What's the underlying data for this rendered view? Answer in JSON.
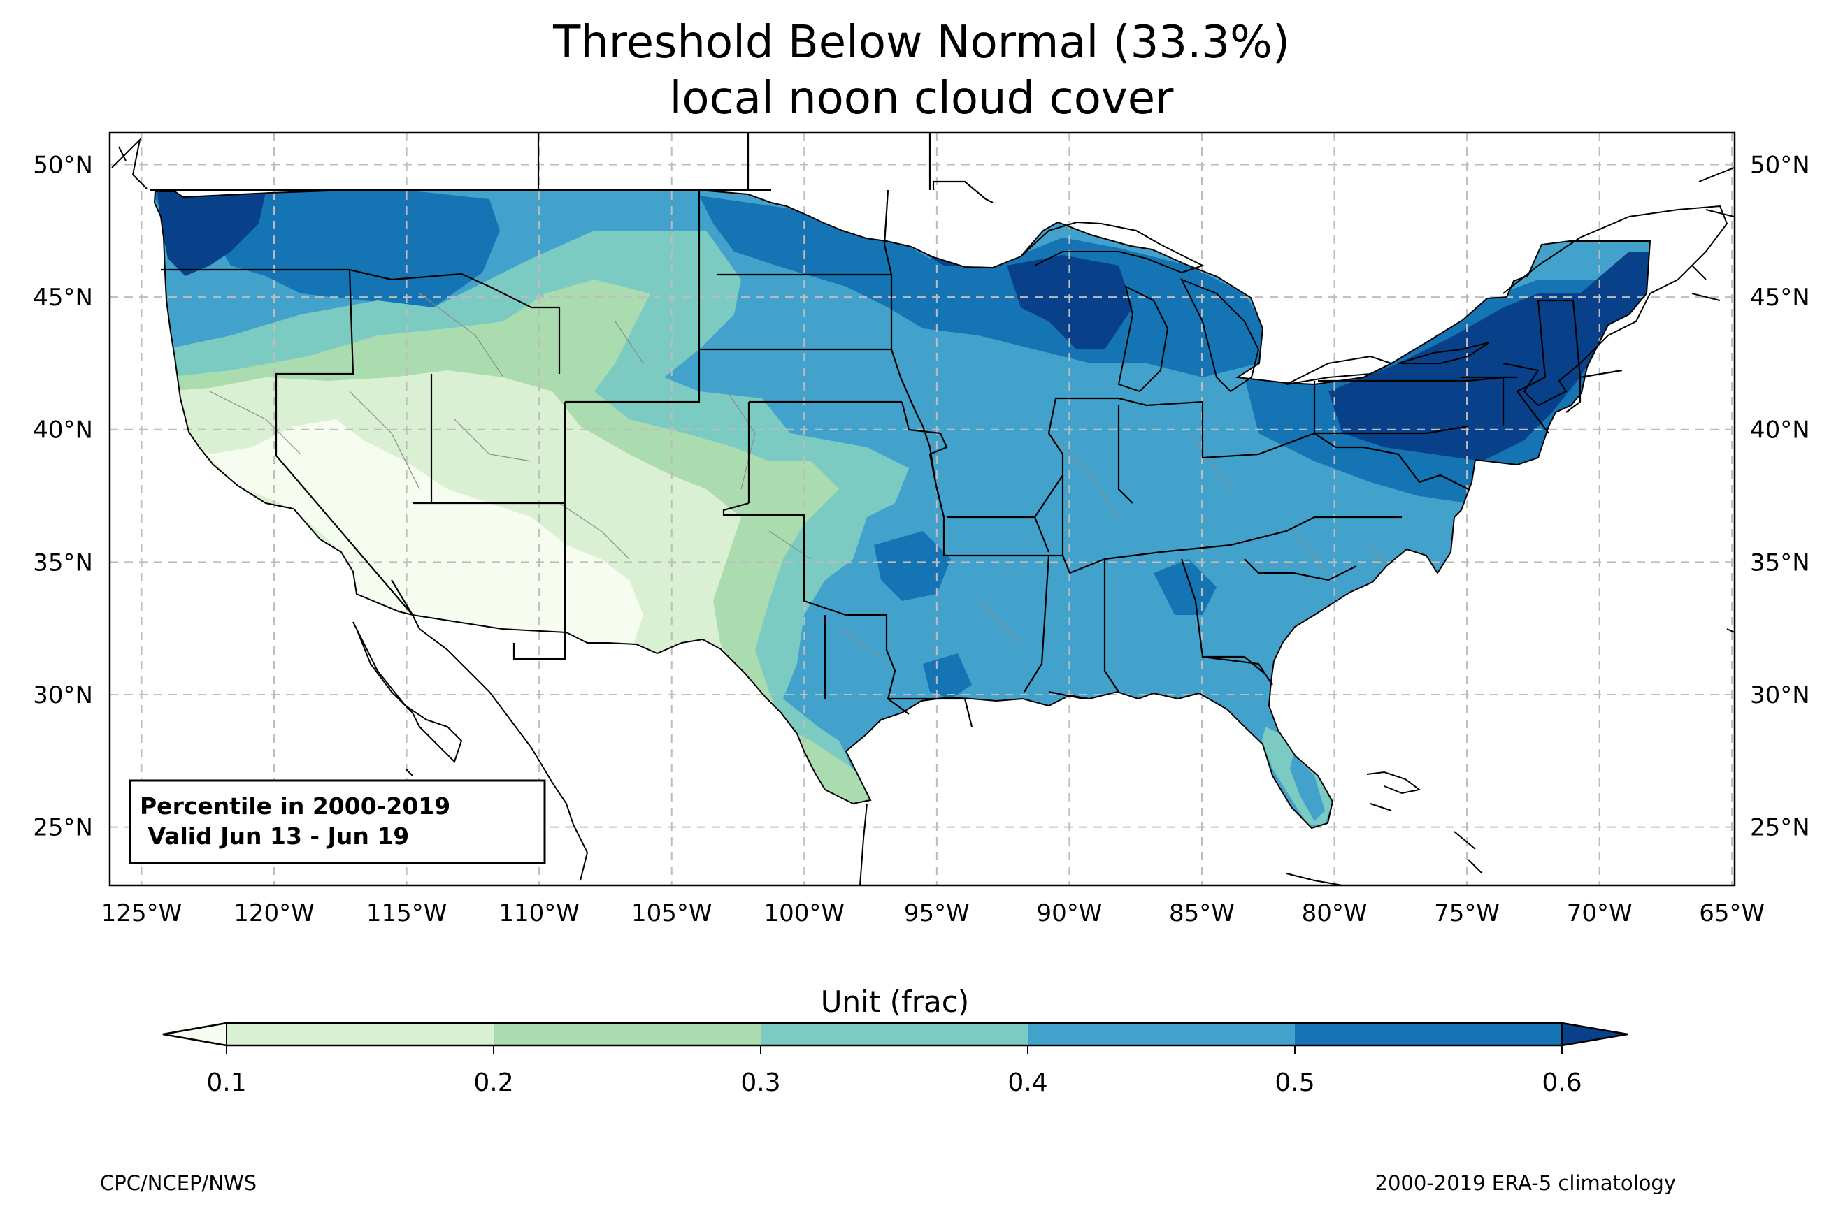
{
  "title": {
    "line1": "Threshold Below Normal (33.3%)",
    "line2": "local noon cloud cover"
  },
  "map": {
    "projection": "PlateCarree",
    "lon_range": [
      -126.2,
      -64.9
    ],
    "lat_range": [
      22.8,
      51.2
    ],
    "lon_ticks": [
      "125°W",
      "120°W",
      "115°W",
      "110°W",
      "105°W",
      "100°W",
      "95°W",
      "90°W",
      "85°W",
      "80°W",
      "75°W",
      "70°W",
      "65°W"
    ],
    "lat_ticks": [
      "25°N",
      "30°N",
      "35°N",
      "40°N",
      "45°N",
      "50°N"
    ],
    "gridlines": true,
    "colors": {
      "lt_0_1": "#f7fcf0",
      "0_1_to_0_2": "#d9f0d3",
      "0_2_to_0_3": "#aadcaf",
      "0_3_to_0_4": "#7ccbc2",
      "0_4_to_0_5": "#43a2cb",
      "0_5_to_0_6": "#1474b4",
      "gt_0_6": "#08418a"
    }
  },
  "annotation": {
    "line1": "Percentile in 2000-2019",
    "line2": " Valid Jun 13 - Jun 19"
  },
  "colorbar": {
    "label": "Unit (frac)",
    "ticks": [
      "0.1",
      "0.2",
      "0.3",
      "0.4",
      "0.5",
      "0.6"
    ],
    "extend": "both"
  },
  "footer": {
    "left": "CPC/NCEP/NWS",
    "right": "2000-2019 ERA-5 climatology"
  }
}
